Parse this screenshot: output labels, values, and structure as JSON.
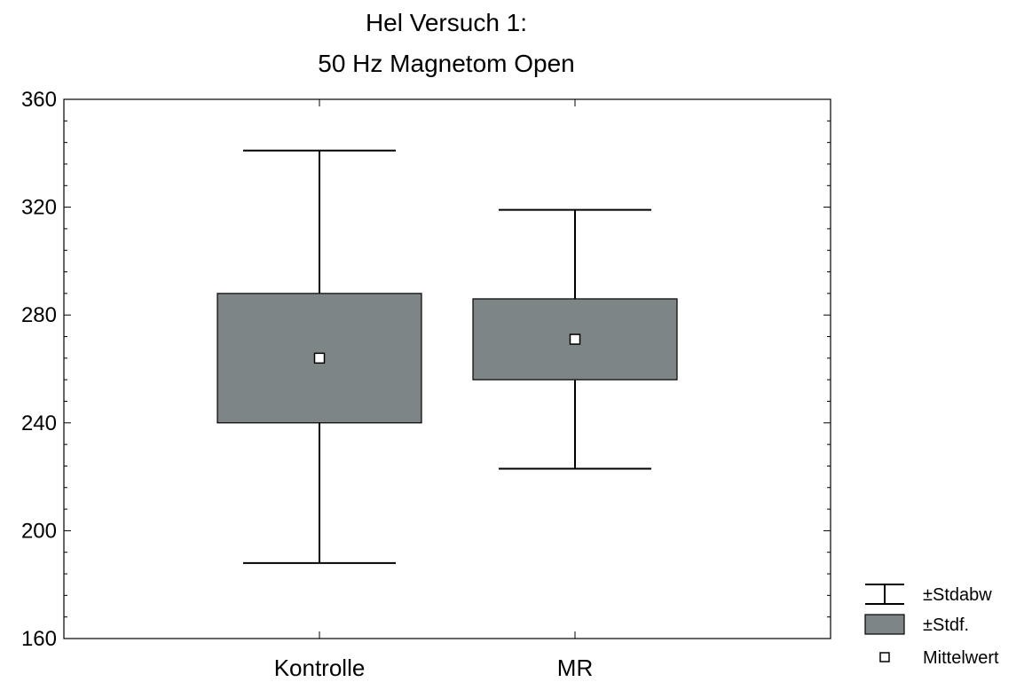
{
  "chart_data": {
    "type": "box",
    "title_lines": [
      "Hel Versuch 1:",
      "50 Hz Magnetom Open"
    ],
    "xlabel": "",
    "ylabel": "",
    "ylim": [
      160,
      360
    ],
    "yticks": [
      160,
      200,
      240,
      280,
      320,
      360
    ],
    "ytick_labels": [
      "160",
      "200",
      "240",
      "280",
      "320",
      "360"
    ],
    "grid": false,
    "legend_position": "bottom-right",
    "categories": [
      "Kontrolle",
      "MR"
    ],
    "boxes": [
      {
        "category": "Kontrolle",
        "mean": 264,
        "stdf_low": 240,
        "stdf_high": 288,
        "stdabw_low": 188,
        "stdabw_high": 341
      },
      {
        "category": "MR",
        "mean": 271,
        "stdf_low": 256,
        "stdf_high": 286,
        "stdabw_low": 223,
        "stdabw_high": 319
      }
    ],
    "legend": [
      {
        "label": "±Stdabw",
        "kind": "whisker"
      },
      {
        "label": "±Stdf.",
        "kind": "box"
      },
      {
        "label": "Mittelwert",
        "kind": "mean"
      }
    ],
    "colors": {
      "box_fill": "#7d8586",
      "stroke": "#000000",
      "mean_fill": "#ffffff"
    }
  }
}
